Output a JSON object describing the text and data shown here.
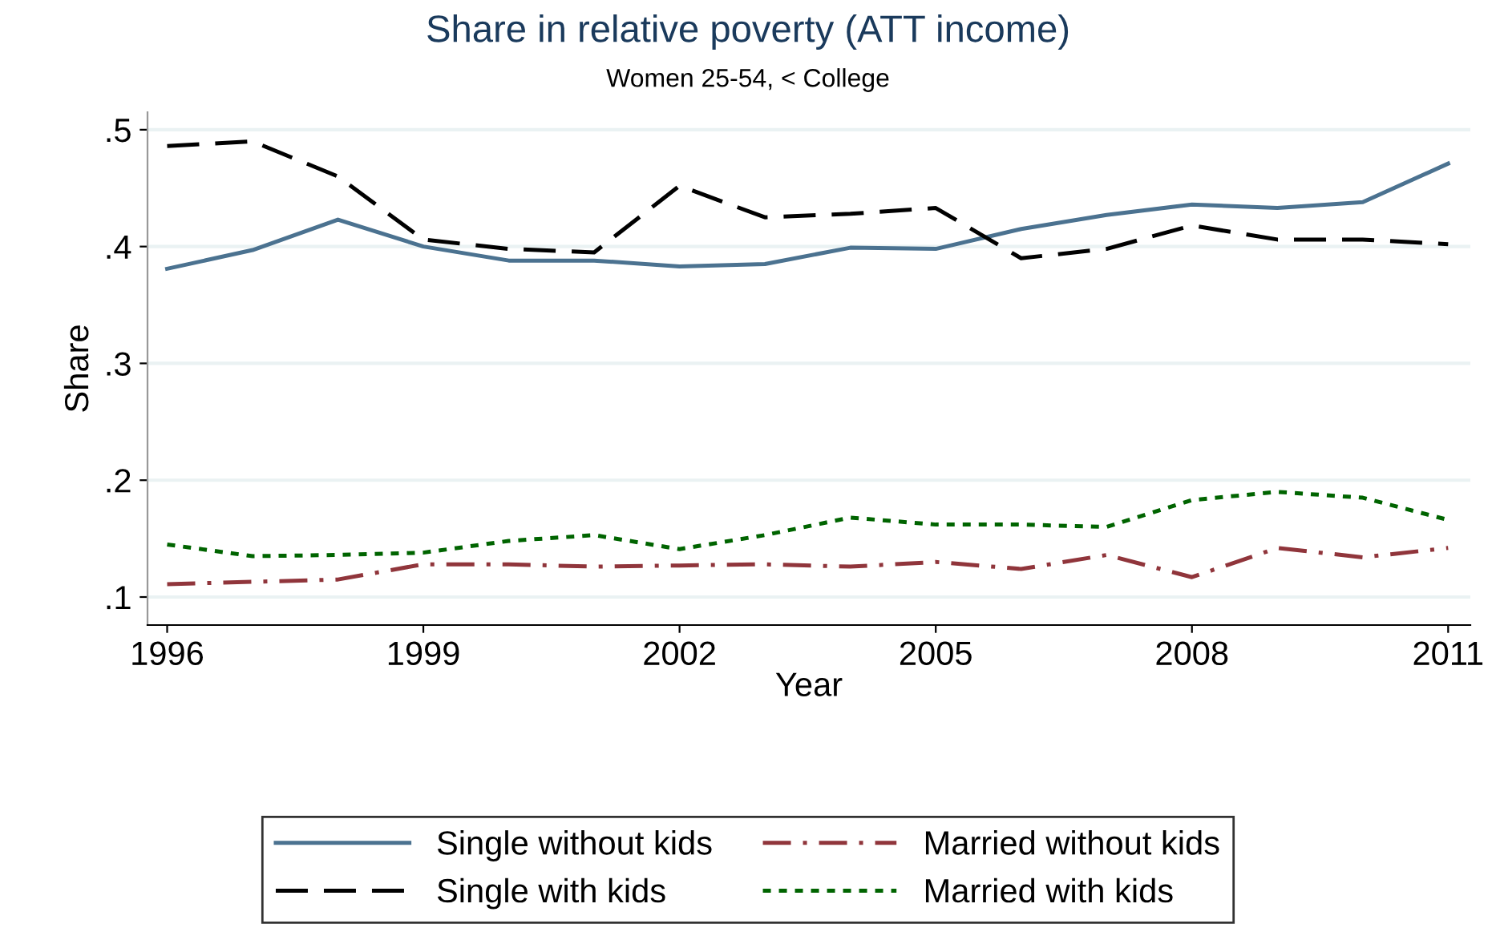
{
  "chart_data": {
    "type": "line",
    "title": "Share in relative poverty (ATT income)",
    "subtitle": "Women 25-54, < College",
    "xlabel": "Year",
    "ylabel": "Share",
    "x": [
      1996,
      1997,
      1998,
      1999,
      2000,
      2001,
      2002,
      2003,
      2004,
      2005,
      2006,
      2007,
      2008,
      2009,
      2010,
      2011
    ],
    "series": [
      {
        "name": "Single without kids",
        "color": "#4b7290",
        "line_style": "solid",
        "values": [
          0.381,
          0.397,
          0.423,
          0.4,
          0.388,
          0.388,
          0.383,
          0.385,
          0.399,
          0.398,
          0.415,
          0.427,
          0.436,
          0.433,
          0.438,
          0.471
        ]
      },
      {
        "name": "Single with kids",
        "color": "#000000",
        "line_style": "dashed",
        "values": [
          0.486,
          0.49,
          0.46,
          0.406,
          0.398,
          0.395,
          0.452,
          0.425,
          0.428,
          0.433,
          0.39,
          0.398,
          0.418,
          0.406,
          0.406,
          0.402
        ]
      },
      {
        "name": "Married without kids",
        "color": "#90353b",
        "line_style": "dashdot",
        "values": [
          0.111,
          0.113,
          0.115,
          0.128,
          0.128,
          0.126,
          0.127,
          0.128,
          0.126,
          0.13,
          0.124,
          0.136,
          0.117,
          0.142,
          0.134,
          0.142
        ]
      },
      {
        "name": "Married with kids",
        "color": "#006400",
        "line_style": "dotted",
        "values": [
          0.145,
          0.135,
          0.136,
          0.138,
          0.148,
          0.153,
          0.141,
          0.153,
          0.168,
          0.162,
          0.162,
          0.16,
          0.183,
          0.19,
          0.185,
          0.166
        ]
      }
    ],
    "xlim": [
      1995.77,
      2011.26
    ],
    "xticks": [
      1996,
      1999,
      2002,
      2005,
      2008,
      2011
    ],
    "ylim": [
      0.076,
      0.515
    ],
    "yticks": [
      {
        "value": 0.1,
        "label": ".1"
      },
      {
        "value": 0.2,
        "label": ".2"
      },
      {
        "value": 0.3,
        "label": ".3"
      },
      {
        "value": 0.4,
        "label": ".4"
      },
      {
        "value": 0.5,
        "label": ".5"
      }
    ],
    "grid": "y",
    "legend": "bottom",
    "marker": "none"
  }
}
